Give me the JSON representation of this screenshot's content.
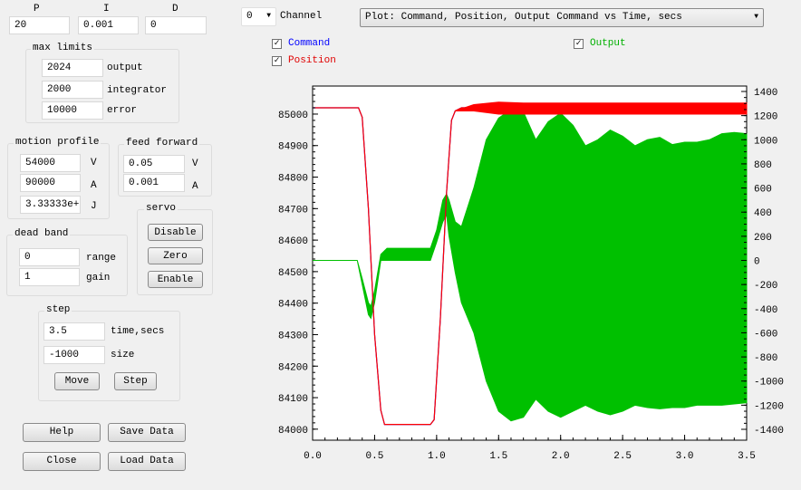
{
  "pid": {
    "p_label": "P",
    "i_label": "I",
    "d_label": "D",
    "p": "20",
    "i": "0.001",
    "d": "0"
  },
  "max_limits": {
    "title": "max limits",
    "output": "2024",
    "output_label": "output",
    "integrator": "2000",
    "integrator_label": "integrator",
    "error": "10000",
    "error_label": "error"
  },
  "motion_profile": {
    "title": "motion profile",
    "v": "54000",
    "v_label": "V",
    "a": "90000",
    "a_label": "A",
    "j": "3.33333e+",
    "j_label": "J"
  },
  "feed_forward": {
    "title": "feed forward",
    "v": "0.05",
    "v_label": "V",
    "a": "0.001",
    "a_label": "A"
  },
  "servo": {
    "title": "servo",
    "disable": "Disable",
    "zero": "Zero",
    "enable": "Enable"
  },
  "dead_band": {
    "title": "dead band",
    "range": "0",
    "range_label": "range",
    "gain": "1",
    "gain_label": "gain"
  },
  "step": {
    "title": "step",
    "time": "3.5",
    "time_label": "time,secs",
    "size": "-1000",
    "size_label": "size",
    "move": "Move",
    "step": "Step"
  },
  "buttons": {
    "help": "Help",
    "save": "Save Data",
    "close": "Close",
    "load": "Load Data"
  },
  "channel": {
    "value": "0",
    "label": "Channel"
  },
  "plot_select": {
    "value": "Plot: Command, Position, Output Command vs Time, secs"
  },
  "checkboxes": {
    "command": {
      "label": "Command",
      "checked": true,
      "color": "#0000ff"
    },
    "position": {
      "label": "Position",
      "checked": true,
      "color": "#ff0000"
    },
    "output": {
      "label": "Output",
      "checked": true,
      "color": "#00c000"
    }
  },
  "chart_data": {
    "type": "line",
    "xlim": [
      0,
      3.5
    ],
    "ylim_left": [
      83965,
      85089
    ],
    "ylim_right": [
      -1490,
      1445
    ],
    "x_ticks": [
      "0.0",
      "0.5",
      "1.0",
      "1.5",
      "2.0",
      "2.5",
      "3.0",
      "3.5"
    ],
    "left_ticks": [
      "84000",
      "84100",
      "84200",
      "84300",
      "84400",
      "84500",
      "84600",
      "84700",
      "84800",
      "84900",
      "85000"
    ],
    "right_ticks": [
      "-1400",
      "-1200",
      "-1000",
      "-800",
      "-600",
      "-400",
      "-200",
      "0",
      "200",
      "400",
      "600",
      "800",
      "1000",
      "1200",
      "1400"
    ],
    "grid": false,
    "series": [
      {
        "name": "Command",
        "axis": "left",
        "color": "#0000ff",
        "x": [
          0,
          0.37,
          0.4,
          0.45,
          0.5,
          0.55,
          0.58,
          0.95,
          0.98,
          1.03,
          1.08,
          1.12,
          1.15,
          1.2,
          3.5
        ],
        "y": [
          85020,
          85020,
          84990,
          84700,
          84300,
          84060,
          84015,
          84015,
          84030,
          84350,
          84750,
          84980,
          85010,
          85020,
          85020
        ]
      },
      {
        "name": "Position",
        "axis": "left",
        "color": "#ff0000",
        "x": [
          0,
          0.37,
          0.4,
          0.45,
          0.5,
          0.55,
          0.58,
          0.95,
          0.98,
          1.03,
          1.08,
          1.12,
          1.15,
          1.2,
          3.5
        ],
        "y": [
          85020,
          85020,
          84990,
          84700,
          84300,
          84060,
          84015,
          84015,
          84030,
          84350,
          84750,
          84980,
          85010,
          85020,
          85020
        ],
        "oscillation_band": {
          "x": [
            1.15,
            1.3,
            1.5,
            1.7,
            3.5
          ],
          "upper": [
            85010,
            85030,
            85038,
            85035,
            85035
          ],
          "lower": [
            85010,
            85010,
            85000,
            85000,
            85000
          ]
        }
      },
      {
        "name": "Output",
        "axis": "right",
        "color": "#00c000",
        "x": [
          0,
          0.36,
          0.4,
          0.45,
          0.47,
          0.5,
          0.55,
          0.6,
          0.65,
          0.95,
          1.0,
          1.05,
          1.08,
          1.1,
          1.15,
          1.2,
          1.3,
          1.4,
          1.5,
          1.6,
          1.7,
          1.8,
          1.9,
          2.0,
          2.1,
          2.2,
          2.3,
          2.4,
          2.5,
          2.6,
          2.7,
          2.8,
          2.9,
          3.0,
          3.1,
          3.2,
          3.3,
          3.4,
          3.5
        ],
        "upper": [
          0,
          0,
          -150,
          -350,
          -380,
          -250,
          50,
          100,
          100,
          100,
          250,
          500,
          550,
          500,
          320,
          280,
          600,
          1000,
          1180,
          1250,
          1230,
          1000,
          1150,
          1220,
          1120,
          950,
          1000,
          1080,
          1030,
          950,
          1000,
          1020,
          960,
          980,
          980,
          1000,
          1050,
          1060,
          1050
        ],
        "lower": [
          0,
          0,
          -200,
          -450,
          -480,
          -350,
          0,
          0,
          0,
          0,
          150,
          320,
          380,
          200,
          -100,
          -350,
          -600,
          -1000,
          -1250,
          -1330,
          -1300,
          -1150,
          -1250,
          -1300,
          -1250,
          -1200,
          -1250,
          -1280,
          -1250,
          -1200,
          -1220,
          -1230,
          -1220,
          -1220,
          -1200,
          -1200,
          -1200,
          -1190,
          -1180
        ]
      }
    ]
  }
}
